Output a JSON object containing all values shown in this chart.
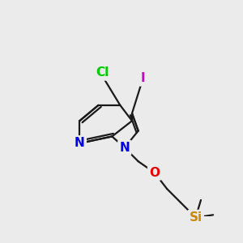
{
  "bg_color": "#ebebeb",
  "bond_color": "#1a1a1a",
  "bond_width": 1.6,
  "atom_colors": {
    "Cl": "#00cc00",
    "I": "#cc00cc",
    "N": "#0000ee",
    "O": "#ee0000",
    "Si": "#cc8800",
    "C": "#1a1a1a"
  },
  "font_size_atoms": 11,
  "fig_w": 3.0,
  "fig_h": 3.0,
  "dpi": 100
}
